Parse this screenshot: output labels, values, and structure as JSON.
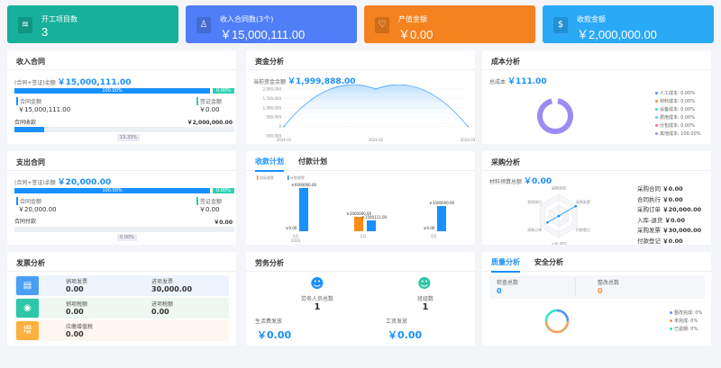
{
  "kpis": [
    {
      "label": "开工项目数",
      "value": "3",
      "color": "#16b09b",
      "icon": "layers-icon"
    },
    {
      "label": "收入合同数(3个)",
      "value": "￥15,000,111.00",
      "color": "#4f7ef8",
      "icon": "stamp-icon"
    },
    {
      "label": "产值金额",
      "value": "￥0.00",
      "color": "#f4821f",
      "icon": "heart-shield-icon"
    },
    {
      "label": "收款金额",
      "value": "￥2,000,000.00",
      "color": "#2aa9f6",
      "icon": "money-bag-icon"
    }
  ],
  "income": {
    "title": "收入合同",
    "balance_label": "(合同+签证)余额",
    "balance": "￥15,000,111.00",
    "contract_pct": "100.00%",
    "visa_pct": "0.00%",
    "contract_label": "合同金额",
    "contract_value": "￥15,000,111.00",
    "visa_label": "签证金额",
    "visa_value": "￥0.00",
    "recv_label": "合同收款",
    "recv_value": "￥2,000,000.00",
    "recv_pct": "13.33%",
    "recv_fraction": 0.1333
  },
  "expense": {
    "title": "支出合同",
    "balance_label": "(合同+签证)余额",
    "balance": "￥20,000.00",
    "contract_pct": "100.00%",
    "visa_pct": "0.00%",
    "contract_label": "合同金额",
    "contract_value": "￥20,000.00",
    "visa_label": "签证金额",
    "visa_value": "￥0.00",
    "recv_label": "合同付款",
    "recv_value": "￥0.00",
    "recv_pct": "0.00%",
    "recv_fraction": 0
  },
  "funds": {
    "title": "资金分析",
    "balance_label": "当前资金余额",
    "balance": "￥1,999,888.00",
    "chart_data": {
      "type": "area",
      "x": [
        "2024-01",
        "2024-02",
        "2024-03"
      ],
      "values": [
        0,
        2000000,
        0
      ],
      "yticks": [
        "2,000,000",
        "1,500,000",
        "1,000,000",
        "500,000",
        "0",
        "-500,000"
      ],
      "ylim": [
        -500000,
        2000000
      ]
    }
  },
  "cost": {
    "title": "成本分析",
    "total_label": "总成本",
    "total": "￥111.00",
    "chart_data": {
      "type": "pie",
      "legend_placement": "right",
      "slices": [
        {
          "label": "人工成本: 0.00%",
          "value": 0,
          "color": "#5b8ff9"
        },
        {
          "label": "材料成本: 0.00%",
          "value": 0,
          "color": "#f6903d"
        },
        {
          "label": "设备成本: 0.00%",
          "value": 0,
          "color": "#2ee6c5"
        },
        {
          "label": "费用成本: 0.00%",
          "value": 0,
          "color": "#5ac8fa"
        },
        {
          "label": "分包成本: 0.00%",
          "value": 0,
          "color": "#ff6b81"
        },
        {
          "label": "其他成本: 100.00%",
          "value": 100,
          "color": "#9a8cf2"
        }
      ]
    }
  },
  "plan": {
    "tabs": [
      "收款计划",
      "付款计划"
    ],
    "chart_data": {
      "type": "bar",
      "categories": [
        "1月",
        "2月",
        "3月"
      ],
      "sub_label": "2024",
      "series": [
        {
          "name": "实际收款",
          "color": "#fa8c16",
          "values": [
            0,
            2000000,
            0
          ],
          "labels": [
            "￥0.00",
            "￥2000000.00",
            "￥0.00"
          ]
        },
        {
          "name": "计划收款",
          "color": "#1890ff",
          "values": [
            6000000,
            1500111,
            3500000
          ],
          "labels": [
            "￥6000000.00",
            "￥1500111.00",
            "￥3500000.00"
          ]
        }
      ]
    }
  },
  "purchase": {
    "title": "采购分析",
    "budget_label": "材料预算总额",
    "budget": "￥0.00",
    "chart_data": {
      "type": "radar",
      "axes": [
        "采购合同",
        "采购发票",
        "付款登记",
        "入库-退货",
        "采购订单",
        "合同执行"
      ],
      "values": [
        0,
        30000,
        0,
        0,
        20000,
        0
      ]
    },
    "items": [
      {
        "label": "采购合同",
        "value": "￥0.00"
      },
      {
        "label": "合同执行",
        "value": "￥0.00"
      },
      {
        "label": "采购订单",
        "value": "￥20,000.00"
      },
      {
        "label": "入库-退货",
        "value": "￥0.00"
      },
      {
        "label": "采购发票",
        "value": "￥30,000.00"
      },
      {
        "label": "付款登记",
        "value": "￥0.00"
      }
    ]
  },
  "invoice": {
    "title": "发票分析",
    "rows": [
      {
        "icon": "receipt-icon",
        "color": "#4a9ff5",
        "bg": "#eef4fd",
        "a_label": "销项发票",
        "a_value": "0.00",
        "b_label": "进项发票",
        "b_value": "30,000.00"
      },
      {
        "icon": "hand-coin-icon",
        "color": "#2cc7a8",
        "bg": "#eef8f1",
        "a_label": "销项税额",
        "a_value": "0.00",
        "b_label": "进项税额",
        "b_value": "0.00"
      },
      {
        "icon": "tax-icon",
        "color": "#fbb040",
        "bg": "#fdf7ef",
        "a_label": "应缴增值税",
        "a_value": "0.00"
      }
    ]
  },
  "labor": {
    "title": "劳务分析",
    "workers_label": "劳务人员总数",
    "workers": "1",
    "teams_label": "班组数",
    "teams": "1",
    "living_label": "生活费发放",
    "living": "￥0.00",
    "wage_label": "工资发放",
    "wage": "￥0.00"
  },
  "quality": {
    "tabs": [
      "质量分析",
      "安全分析"
    ],
    "check_label": "检查总数",
    "check": "0",
    "fix_label": "整改总数",
    "fix": "0",
    "chart_data": {
      "type": "pie",
      "slices": [
        {
          "label": "整改完成: 0%",
          "value": 0,
          "color": "#5b8ff9"
        },
        {
          "label": "未完成: 0%",
          "value": 0,
          "color": "#f6903d"
        },
        {
          "label": "已逾期: 0%",
          "value": 0,
          "color": "#2ee6c5"
        }
      ]
    }
  }
}
